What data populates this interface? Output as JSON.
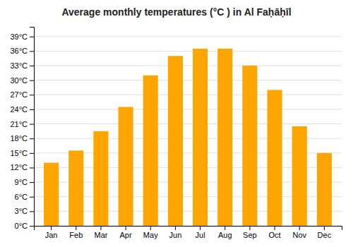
{
  "chart_data": {
    "type": "bar",
    "title": "Average monthly temperatures (°C ) in Al Faḥāḥīl",
    "categories": [
      "Jan",
      "Feb",
      "Mar",
      "Apr",
      "May",
      "Jun",
      "Jul",
      "Aug",
      "Sep",
      "Oct",
      "Nov",
      "Dec"
    ],
    "values": [
      13.0,
      15.5,
      19.5,
      24.5,
      31.0,
      35.0,
      36.5,
      36.5,
      33.0,
      28.0,
      20.5,
      15.0
    ],
    "color": "#FFA500",
    "ylim": [
      0,
      41
    ],
    "yticks": [
      {
        "value": 0,
        "label": "0°C"
      },
      {
        "value": 3,
        "label": "3°C"
      },
      {
        "value": 6,
        "label": "6°C"
      },
      {
        "value": 9,
        "label": "9°C"
      },
      {
        "value": 12,
        "label": "12°C"
      },
      {
        "value": 15,
        "label": "15°C"
      },
      {
        "value": 18,
        "label": "18°C"
      },
      {
        "value": 21,
        "label": "21°C"
      },
      {
        "value": 24,
        "label": "24°C"
      },
      {
        "value": 27,
        "label": "27°C"
      },
      {
        "value": 30,
        "label": "30°C"
      },
      {
        "value": 33,
        "label": "33°C"
      },
      {
        "value": 36,
        "label": "36°C"
      },
      {
        "value": 39,
        "label": "39°C"
      }
    ],
    "grid": true
  }
}
